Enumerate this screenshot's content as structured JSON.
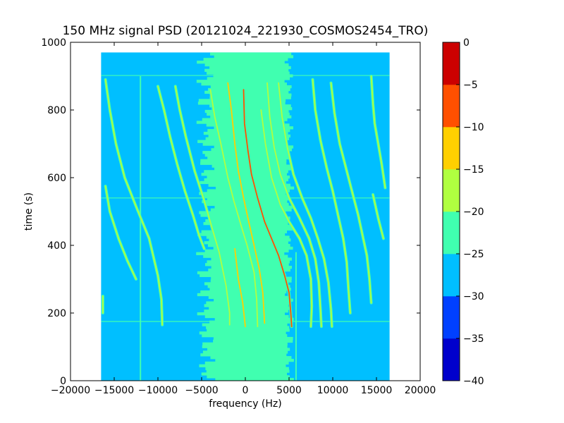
{
  "chart_data": {
    "type": "heatmap",
    "title": "150 MHz signal PSD (20121024_221930_COSMOS2454_TRO)",
    "xlabel": "frequency (Hz)",
    "ylabel": "time (s)",
    "xlim": [
      -20000,
      20000
    ],
    "ylim": [
      0,
      1000
    ],
    "x_ticks": [
      -20000,
      -15000,
      -10000,
      -5000,
      0,
      5000,
      10000,
      15000,
      20000
    ],
    "x_tick_labels": [
      "−20000",
      "−15000",
      "−10000",
      "−5000",
      "0",
      "5000",
      "10000",
      "15000",
      "20000"
    ],
    "y_ticks": [
      0,
      200,
      400,
      600,
      800,
      1000
    ],
    "y_tick_labels": [
      "0",
      "200",
      "400",
      "600",
      "800",
      "1000"
    ],
    "data_extent": {
      "x": [
        -16500,
        16500
      ],
      "y": [
        0,
        970
      ]
    },
    "colorbar": {
      "levels": [
        -40,
        -35,
        -30,
        -25,
        -20,
        -15,
        -10,
        -5,
        0
      ],
      "tick_labels": [
        "−40",
        "−35",
        "−30",
        "−25",
        "−20",
        "−15",
        "−10",
        "−5",
        "0"
      ],
      "colors": [
        "#0000cc",
        "#0040ff",
        "#00bfff",
        "#40ffb0",
        "#b0ff40",
        "#ffd000",
        "#ff5000",
        "#cc0000"
      ]
    },
    "background_level": -27.5,
    "central_band": {
      "x_range": [
        -5000,
        5500
      ],
      "level": -22.5
    },
    "horizontal_artifacts": [
      {
        "y": 175,
        "level": -22.5
      },
      {
        "y": 540,
        "level": -22.5
      },
      {
        "y": 902,
        "level": -22.5
      }
    ],
    "vertical_artifacts": [
      {
        "x": 5800,
        "y_range": [
          0,
          380
        ],
        "level": -22.5
      },
      {
        "x": -12000,
        "y_range": [
          0,
          900
        ],
        "level": -22.5
      }
    ],
    "series": [
      {
        "level": -17.5,
        "points": [
          [
            -16300,
            250
          ],
          [
            -16300,
            200
          ]
        ]
      },
      {
        "level": -17.5,
        "points": [
          [
            -16000,
            575
          ],
          [
            -15500,
            500
          ],
          [
            -14500,
            420
          ],
          [
            -13500,
            355
          ],
          [
            -12500,
            300
          ]
        ]
      },
      {
        "level": -17.5,
        "points": [
          [
            -16000,
            890
          ],
          [
            -15500,
            800
          ],
          [
            -14800,
            700
          ],
          [
            -13800,
            600
          ],
          [
            -12500,
            515
          ],
          [
            -11000,
            420
          ],
          [
            -10000,
            310
          ],
          [
            -9600,
            240
          ],
          [
            -9500,
            165
          ]
        ]
      },
      {
        "level": -17.5,
        "points": [
          [
            -10000,
            870
          ],
          [
            -9300,
            800
          ],
          [
            -8600,
            720
          ],
          [
            -7800,
            640
          ],
          [
            -6900,
            560
          ],
          [
            -6000,
            490
          ],
          [
            -5300,
            430
          ],
          [
            -4700,
            390
          ]
        ]
      },
      {
        "level": -17.5,
        "points": [
          [
            -8000,
            870
          ],
          [
            -7500,
            800
          ],
          [
            -6800,
            720
          ],
          [
            -5800,
            620
          ],
          [
            -4800,
            540
          ],
          [
            -3900,
            460
          ],
          [
            -3000,
            380
          ],
          [
            -2200,
            280
          ],
          [
            -1800,
            200
          ],
          [
            -1800,
            165
          ]
        ]
      },
      {
        "level": -17.5,
        "points": [
          [
            -4000,
            860
          ],
          [
            -3500,
            780
          ],
          [
            -2800,
            700
          ],
          [
            -2000,
            600
          ],
          [
            -1300,
            530
          ],
          [
            -500,
            460
          ],
          [
            200,
            400
          ],
          [
            1000,
            320
          ],
          [
            1300,
            240
          ],
          [
            1400,
            160
          ]
        ]
      },
      {
        "level": -12.5,
        "points": [
          [
            -2000,
            880
          ],
          [
            -1600,
            800
          ],
          [
            -1200,
            700
          ],
          [
            -800,
            620
          ],
          [
            -200,
            540
          ],
          [
            300,
            480
          ],
          [
            1000,
            400
          ],
          [
            1600,
            330
          ],
          [
            2000,
            260
          ],
          [
            2200,
            170
          ]
        ]
      },
      {
        "level": -7.5,
        "points": [
          [
            -200,
            860
          ],
          [
            -100,
            760
          ],
          [
            300,
            680
          ],
          [
            700,
            610
          ],
          [
            1400,
            540
          ],
          [
            2200,
            470
          ],
          [
            3000,
            420
          ],
          [
            3800,
            370
          ],
          [
            4500,
            310
          ],
          [
            5000,
            260
          ],
          [
            5200,
            200
          ],
          [
            5300,
            160
          ]
        ]
      },
      {
        "level": -12.5,
        "points": [
          [
            -1200,
            390
          ],
          [
            -800,
            300
          ],
          [
            -300,
            230
          ],
          [
            0,
            160
          ]
        ]
      },
      {
        "level": -17.5,
        "points": [
          [
            1800,
            800
          ],
          [
            2300,
            700
          ],
          [
            3000,
            600
          ],
          [
            4000,
            520
          ],
          [
            5000,
            470
          ],
          [
            6200,
            420
          ],
          [
            7000,
            370
          ],
          [
            7500,
            300
          ],
          [
            7600,
            220
          ],
          [
            7500,
            160
          ]
        ]
      },
      {
        "level": -17.5,
        "points": [
          [
            2500,
            880
          ],
          [
            2800,
            780
          ],
          [
            3300,
            690
          ],
          [
            4000,
            610
          ],
          [
            5000,
            540
          ],
          [
            6200,
            480
          ],
          [
            7300,
            420
          ],
          [
            8000,
            360
          ],
          [
            8400,
            290
          ],
          [
            8600,
            210
          ],
          [
            8700,
            160
          ]
        ]
      },
      {
        "level": -17.5,
        "points": [
          [
            3800,
            880
          ],
          [
            4200,
            780
          ],
          [
            4800,
            690
          ],
          [
            5500,
            610
          ],
          [
            6500,
            540
          ],
          [
            7500,
            480
          ],
          [
            8300,
            420
          ],
          [
            9000,
            360
          ],
          [
            9500,
            290
          ],
          [
            9800,
            210
          ],
          [
            9900,
            160
          ]
        ]
      },
      {
        "level": -17.5,
        "points": [
          [
            7700,
            890
          ],
          [
            8000,
            800
          ],
          [
            8600,
            710
          ],
          [
            9300,
            630
          ],
          [
            10000,
            560
          ],
          [
            10600,
            490
          ],
          [
            11200,
            420
          ],
          [
            11600,
            350
          ],
          [
            11800,
            270
          ],
          [
            12000,
            200
          ]
        ]
      },
      {
        "level": -17.5,
        "points": [
          [
            9800,
            880
          ],
          [
            10200,
            790
          ],
          [
            10800,
            700
          ],
          [
            11600,
            620
          ],
          [
            12300,
            550
          ],
          [
            12900,
            490
          ],
          [
            13400,
            430
          ],
          [
            13900,
            370
          ],
          [
            14200,
            300
          ],
          [
            14400,
            230
          ]
        ]
      },
      {
        "level": -17.5,
        "points": [
          [
            14400,
            900
          ],
          [
            14600,
            820
          ],
          [
            14800,
            760
          ],
          [
            15200,
            700
          ],
          [
            15600,
            640
          ],
          [
            16000,
            570
          ]
        ]
      },
      {
        "level": -17.5,
        "points": [
          [
            14600,
            550
          ],
          [
            15200,
            480
          ],
          [
            15800,
            420
          ]
        ]
      }
    ]
  }
}
